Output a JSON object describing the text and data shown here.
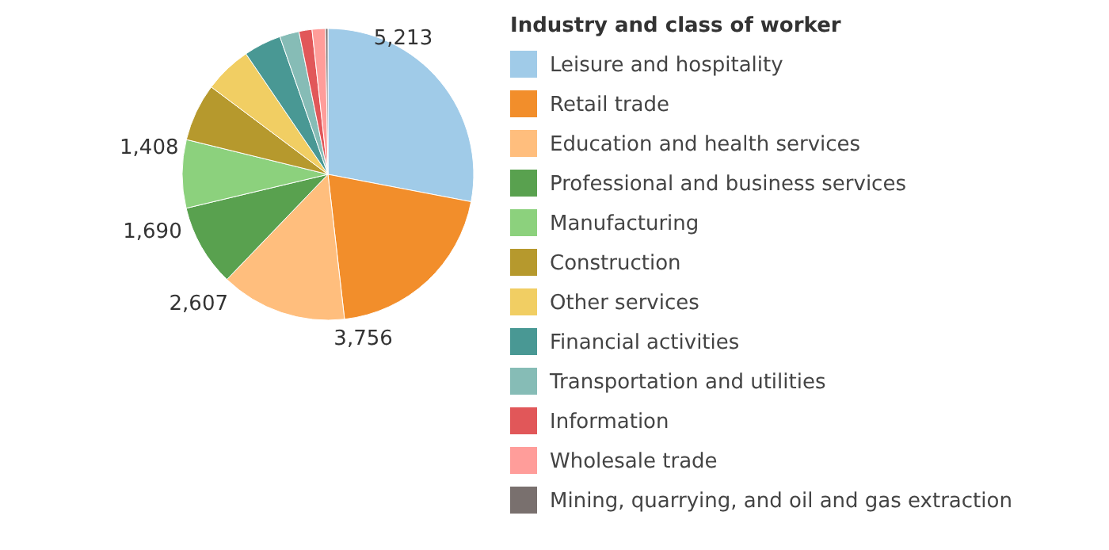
{
  "chart_data": {
    "type": "pie",
    "legend_title": "Industry and class of worker",
    "legend": "right",
    "categories": [
      "Leisure and hospitality",
      "Retail trade",
      "Education and health services",
      "Professional and business services",
      "Manufacturing",
      "Construction",
      "Other services",
      "Financial activities",
      "Transportation and utilities",
      "Information",
      "Wholesale trade",
      "Mining, quarrying, and oil and gas extraction"
    ],
    "values": [
      5213,
      3756,
      2607,
      1690,
      1408,
      1190,
      980,
      775,
      400,
      270,
      275,
      50
    ],
    "value_labels": [
      "5,213",
      "3,756",
      "2,607",
      "1,690",
      "1,408",
      null,
      null,
      null,
      null,
      null,
      null,
      null
    ],
    "colors": [
      "#a0cbe8",
      "#f28e2b",
      "#ffbe7d",
      "#59a14f",
      "#8cd17d",
      "#b6992d",
      "#f1ce63",
      "#499894",
      "#86bcb6",
      "#e15759",
      "#ff9d9a",
      "#79706e"
    ]
  }
}
